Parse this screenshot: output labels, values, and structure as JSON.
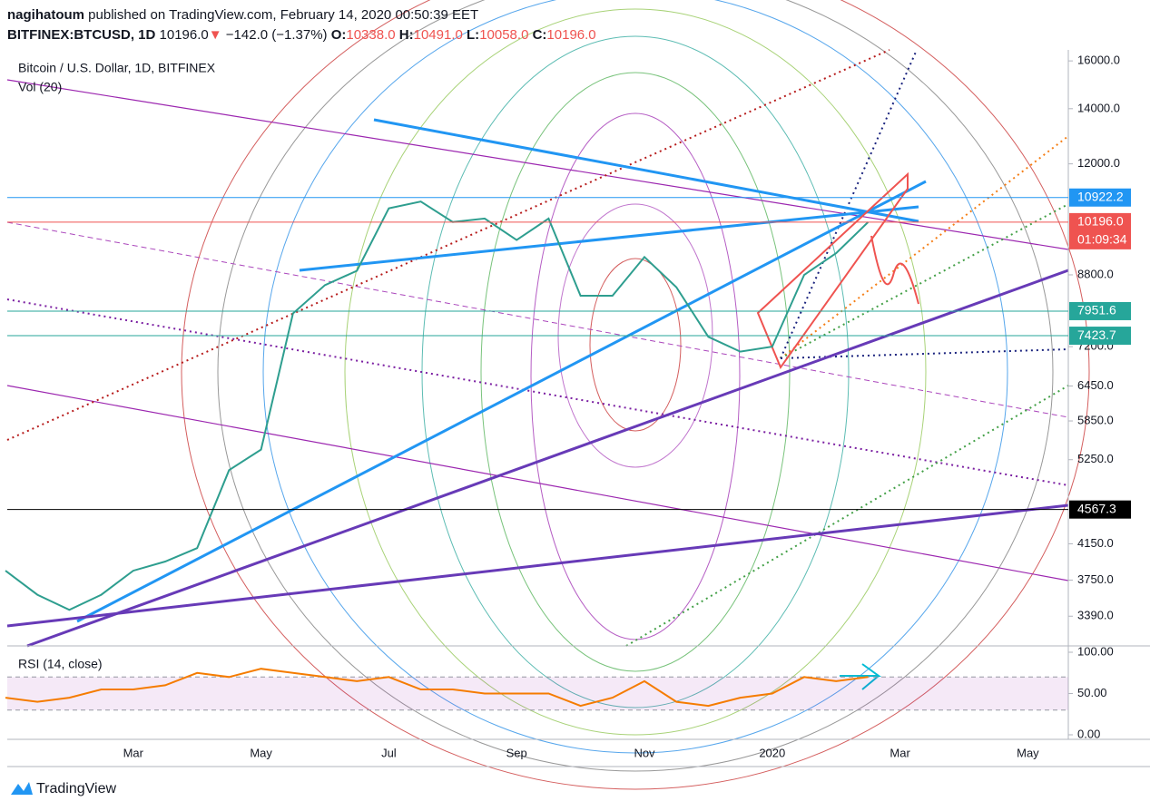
{
  "header": {
    "user": "nagihatoum",
    "published": "published on TradingView.com, February 14, 2020 00:50:39 EET",
    "symbol": "BITFINEX:BTCUSD, 1D",
    "last": "10196.0",
    "arrow": "▼",
    "change": "−142.0 (−1.37%)",
    "open_label": "O:",
    "open": "10338.0",
    "high_label": "H:",
    "high": "10491.0",
    "low_label": "L:",
    "low": "10058.0",
    "close_label": "C:",
    "close": "10196.0"
  },
  "chart_data": [
    {
      "type": "line",
      "title": "Bitcoin / U.S. Dollar, 1D, BITFINEX",
      "subtitle": "Vol (20)",
      "log_scale": true,
      "categories": [
        null,
        null,
        null,
        null,
        "Mar",
        null,
        null,
        null,
        "May",
        null,
        null,
        null,
        "Jul",
        null,
        null,
        null,
        "Sep",
        null,
        null,
        null,
        "Nov",
        null,
        null,
        null,
        "2020",
        null,
        null,
        null,
        "Mar",
        null,
        null,
        null,
        "May",
        null
      ],
      "series": [
        {
          "name": "BTCUSD",
          "color": "#2e9e8f",
          "values": [
            3850,
            3600,
            3450,
            3600,
            3850,
            3950,
            4100,
            5100,
            5400,
            7900,
            8550,
            8900,
            10600,
            10800,
            10200,
            10300,
            9700,
            10300,
            8300,
            8300,
            9250,
            8500,
            7400,
            7100,
            7200,
            8800,
            9350,
            10196,
            null,
            null,
            null,
            null,
            null,
            null
          ]
        }
      ],
      "ylim": [
        3120,
        16500
      ],
      "yticks": [
        {
          "value": 16000,
          "label": "16000.0"
        },
        {
          "value": 14000,
          "label": "14000.0"
        },
        {
          "value": 12000,
          "label": "12000.0"
        },
        {
          "value": 8800,
          "label": "8800.0"
        },
        {
          "value": 7200,
          "label": "7200.0"
        },
        {
          "value": 6450,
          "label": "6450.0"
        },
        {
          "value": 5850,
          "label": "5850.0"
        },
        {
          "value": 5250,
          "label": "5250.0"
        },
        {
          "value": 4150,
          "label": "4150.0"
        },
        {
          "value": 3750,
          "label": "3750.0"
        },
        {
          "value": 3390,
          "label": "3390.0"
        }
      ],
      "price_lines": [
        {
          "price": 10922.2,
          "color": "#2196f3"
        },
        {
          "price": {
            "value": 10196,
            "label": "10196.0"
          },
          "color": "#ef5350",
          "countdown": "01:09:34"
        },
        {
          "price": 7951.6,
          "color": "#26a69a"
        },
        {
          "price": 7423.7,
          "color": "#26a69a"
        },
        {
          "price": 4567.3,
          "color": "#000000"
        }
      ]
    },
    {
      "type": "line",
      "title": "RSI (14, close)",
      "series": [
        {
          "name": "RSI",
          "color": "#f57c00",
          "values": [
            45,
            40,
            45,
            55,
            55,
            60,
            75,
            70,
            80,
            75,
            70,
            65,
            70,
            55,
            55,
            50,
            50,
            50,
            35,
            45,
            65,
            40,
            35,
            45,
            50,
            70,
            65,
            70,
            null,
            null,
            null,
            null,
            null,
            null
          ]
        }
      ],
      "ylim": [
        -5.5,
        107.7
      ],
      "yticks": [
        {
          "value": 100,
          "label": "100.00"
        },
        {
          "value": 50,
          "label": "50.00"
        },
        {
          "value": 0,
          "label": "0.00"
        }
      ],
      "band": [
        30,
        70
      ]
    }
  ],
  "footer": {
    "brand": "TradingView"
  }
}
